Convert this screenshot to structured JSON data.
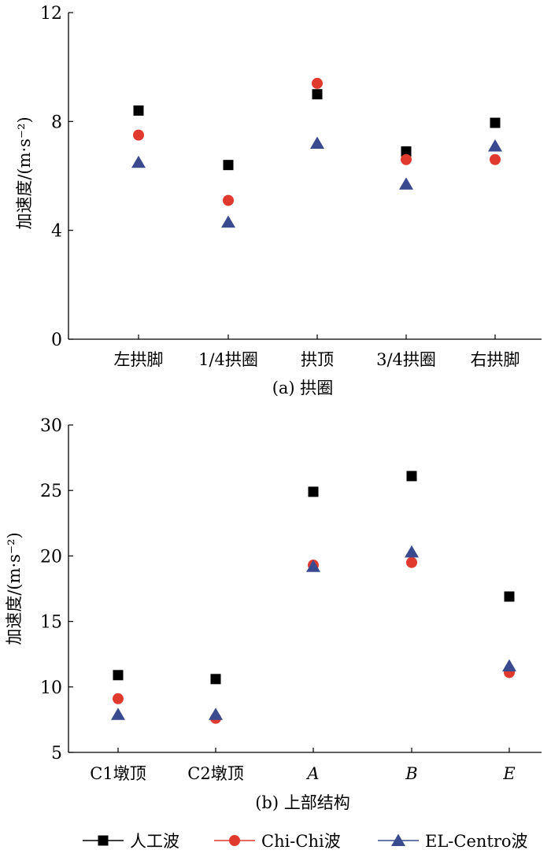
{
  "chart_data": [
    {
      "type": "scatter",
      "title": "(a) 拱圈",
      "ylabel": "加速度/(m·s⁻²)",
      "ylim": [
        0,
        12
      ],
      "yticks": [
        0,
        4,
        8,
        12
      ],
      "categories": [
        "左拱脚",
        "1/4拱圈",
        "拱顶",
        "3/4拱圈",
        "右拱脚"
      ],
      "category_italic": false,
      "grid": false,
      "series": [
        {
          "name": "人工波",
          "marker": "square",
          "color": "#000000",
          "values": [
            8.4,
            6.4,
            9.0,
            6.9,
            7.95
          ]
        },
        {
          "name": "Chi-Chi波",
          "marker": "circle",
          "color": "#e03a2f",
          "values": [
            7.5,
            5.1,
            9.4,
            6.6,
            6.6
          ]
        },
        {
          "name": "EL-Centro波",
          "marker": "triangle",
          "color": "#3a4a8e",
          "values": [
            6.5,
            4.3,
            7.2,
            5.7,
            7.1
          ]
        }
      ]
    },
    {
      "type": "scatter",
      "title": "(b) 上部结构",
      "ylabel": "加速度/(m·s⁻²)",
      "ylim": [
        5,
        30
      ],
      "yticks": [
        5,
        10,
        15,
        20,
        25,
        30
      ],
      "categories": [
        "C1墩顶",
        "C2墩顶",
        "A",
        "B",
        "E"
      ],
      "category_italic": [
        false,
        false,
        true,
        true,
        true
      ],
      "grid": false,
      "series": [
        {
          "name": "人工波",
          "marker": "square",
          "color": "#000000",
          "values": [
            10.9,
            10.6,
            24.9,
            26.1,
            16.9
          ]
        },
        {
          "name": "Chi-Chi波",
          "marker": "circle",
          "color": "#e03a2f",
          "values": [
            9.1,
            7.6,
            19.3,
            19.5,
            11.1
          ]
        },
        {
          "name": "EL-Centro波",
          "marker": "triangle",
          "color": "#3a4a8e",
          "values": [
            7.9,
            7.9,
            19.2,
            20.3,
            11.6
          ]
        }
      ]
    }
  ],
  "legend": {
    "placement": "bottom",
    "entries": [
      {
        "label": "人工波",
        "marker": "square",
        "color": "#000000"
      },
      {
        "label": "Chi-Chi波",
        "marker": "circle",
        "color": "#e03a2f"
      },
      {
        "label": "EL-Centro波",
        "marker": "triangle",
        "color": "#3a4a8e"
      }
    ]
  }
}
